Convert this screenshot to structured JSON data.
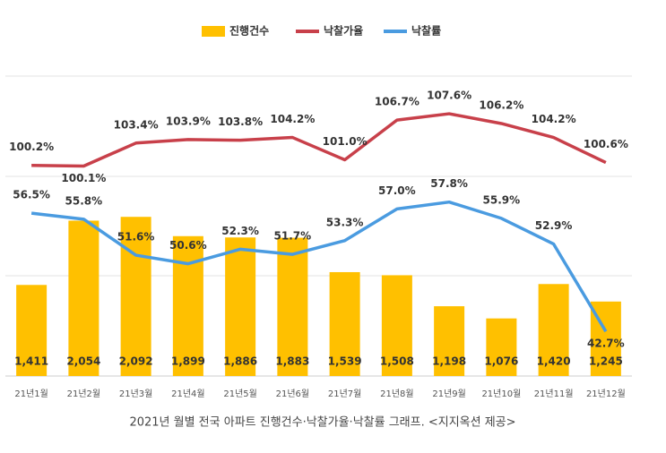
{
  "chart_data": {
    "type": "combo",
    "categories": [
      "21년1월",
      "21년2월",
      "21년3월",
      "21년4월",
      "21년5월",
      "21년6월",
      "21년7월",
      "21년8월",
      "21년9월",
      "21년10월",
      "21년11월",
      "21년12월"
    ],
    "series": [
      {
        "name": "진행건수",
        "type": "bar",
        "color": "#ffc000",
        "ylim": [
          500,
          3500
        ],
        "values": [
          1411,
          2054,
          2092,
          1899,
          1886,
          1883,
          1539,
          1508,
          1198,
          1076,
          1420,
          1245
        ],
        "value_labels": [
          "1,411",
          "2,054",
          "2,092",
          "1,899",
          "1,886",
          "1,883",
          "1,539",
          "1,508",
          "1,198",
          "1,076",
          "1,420",
          "1,245"
        ]
      },
      {
        "name": "낙찰가율",
        "type": "line",
        "color": "#c8404a",
        "ylim": [
          70,
          113
        ],
        "values": [
          100.2,
          100.1,
          103.4,
          103.9,
          103.8,
          104.2,
          101.0,
          106.7,
          107.6,
          106.2,
          104.2,
          100.6
        ],
        "value_labels": [
          "100.2%",
          "100.1%",
          "103.4%",
          "103.9%",
          "103.8%",
          "104.2%",
          "101.0%",
          "106.7%",
          "107.6%",
          "106.2%",
          "104.2%",
          "100.6%"
        ]
      },
      {
        "name": "낙찰률",
        "type": "line",
        "color": "#4a9be0",
        "ylim": [
          37.5,
          72.5
        ],
        "values": [
          56.5,
          55.8,
          51.6,
          50.6,
          52.3,
          51.7,
          53.3,
          57.0,
          57.8,
          55.9,
          52.9,
          42.7
        ],
        "value_labels": [
          "56.5%",
          "55.8%",
          "51.6%",
          "50.6%",
          "52.3%",
          "51.7%",
          "53.3%",
          "57.0%",
          "57.8%",
          "55.9%",
          "52.9%",
          "42.7%"
        ]
      }
    ],
    "caption": "2021년 월별 전국 아파트 진행건수·낙찰가율·낙찰률 그래프. <지지옥션 제공>"
  }
}
